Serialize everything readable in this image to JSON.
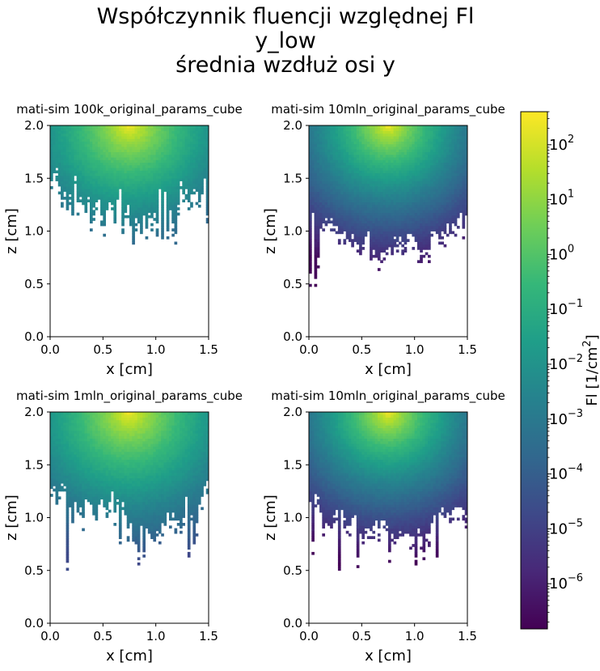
{
  "title_lines": [
    "Współczynnik fluencji względnej Fl",
    "y_low",
    "średnia wzdłuż osi y"
  ],
  "chart_data": [
    {
      "type": "heatmap",
      "title": "mati-sim 100k_original_params_cube",
      "xlabel": "x [cm]",
      "ylabel": "z [cm]",
      "xlim": [
        0.0,
        1.5
      ],
      "ylim": [
        0.0,
        2.0
      ],
      "xticks": [
        "0.0",
        "0.5",
        "1.0",
        "1.5"
      ],
      "yticks": [
        "0.0",
        "0.5",
        "1.0",
        "1.5",
        "2.0"
      ],
      "source_x": 0.75,
      "source_z": 2.0,
      "min_z_nonzero": 0.85,
      "edge_z": 1.2,
      "noise": 0.35,
      "min_value": 0.0002,
      "max_value": 400
    },
    {
      "type": "heatmap",
      "title": "mati-sim 10mln_original_params_cube",
      "xlabel": "x [cm]",
      "ylabel": "z [cm]",
      "xlim": [
        0.0,
        1.5
      ],
      "ylim": [
        0.0,
        2.0
      ],
      "xticks": [
        "0.0",
        "0.5",
        "1.0",
        "1.5"
      ],
      "yticks": [
        "0.0",
        "0.5",
        "1.0",
        "1.5",
        "2.0"
      ],
      "source_x": 0.75,
      "source_z": 2.0,
      "min_z_nonzero": 0.55,
      "edge_z": 0.85,
      "noise": 0.2,
      "min_value": 2e-07,
      "max_value": 400
    },
    {
      "type": "heatmap",
      "title": "mati-sim 1mln_original_params_cube",
      "xlabel": "x [cm]",
      "ylabel": "z [cm]",
      "xlim": [
        0.0,
        1.5
      ],
      "ylim": [
        0.0,
        2.0
      ],
      "xticks": [
        "0.0",
        "0.5",
        "1.0",
        "1.5"
      ],
      "yticks": [
        "0.0",
        "0.5",
        "1.0",
        "1.5",
        "2.0"
      ],
      "source_x": 0.75,
      "source_z": 2.0,
      "min_z_nonzero": 0.55,
      "edge_z": 1.0,
      "noise": 0.3,
      "min_value": 2e-05,
      "max_value": 400
    },
    {
      "type": "heatmap",
      "title": "mati-sim 10mln_original_params_cube",
      "xlabel": "x [cm]",
      "ylabel": "z [cm]",
      "xlim": [
        0.0,
        1.5
      ],
      "ylim": [
        0.0,
        2.0
      ],
      "xticks": [
        "0.0",
        "0.5",
        "1.0",
        "1.5"
      ],
      "yticks": [
        "0.0",
        "0.5",
        "1.0",
        "1.5",
        "2.0"
      ],
      "source_x": 0.75,
      "source_z": 2.0,
      "min_z_nonzero": 0.55,
      "edge_z": 0.85,
      "noise": 0.2,
      "min_value": 2e-07,
      "max_value": 400
    }
  ],
  "colorbar": {
    "label": "Fl [1/cm",
    "label_sup": "2",
    "label_end": "]",
    "scale": "log",
    "colormap": "viridis",
    "range": [
      1.5e-07,
      400
    ],
    "ticks": [
      {
        "base": "10",
        "exp": "2",
        "value": 100
      },
      {
        "base": "10",
        "exp": "1",
        "value": 10
      },
      {
        "base": "10",
        "exp": "0",
        "value": 1
      },
      {
        "base": "10",
        "exp": "−1",
        "value": 0.1
      },
      {
        "base": "10",
        "exp": "−2",
        "value": 0.01
      },
      {
        "base": "10",
        "exp": "−3",
        "value": 0.001
      },
      {
        "base": "10",
        "exp": "−4",
        "value": 0.0001
      },
      {
        "base": "10",
        "exp": "−5",
        "value": 1e-05
      },
      {
        "base": "10",
        "exp": "−6",
        "value": 1e-06
      }
    ]
  },
  "colors": {
    "viridis": [
      "#440154",
      "#482878",
      "#3e4989",
      "#31688e",
      "#26828e",
      "#1f9e89",
      "#35b779",
      "#6ece58",
      "#b5de2b",
      "#fde725"
    ]
  }
}
